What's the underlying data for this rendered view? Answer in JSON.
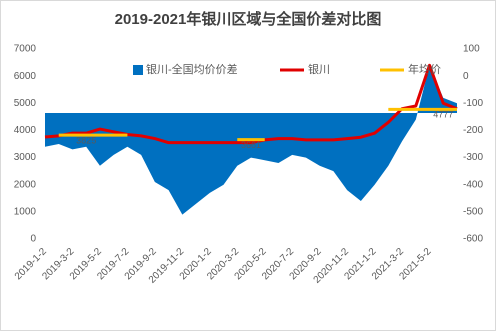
{
  "chart_data": {
    "type": "combo",
    "title": "2019-2021年银川区域与全国价差对比图",
    "categories": [
      "2019-1-2",
      null,
      "2019-3-2",
      null,
      "2019-5-2",
      null,
      "2019-7-2",
      null,
      "2019-9-2",
      null,
      "2019-11-2",
      null,
      "2020-1-2",
      null,
      "2020-3-2",
      null,
      "2020-5-2",
      null,
      "2020-7-2",
      null,
      "2020-9-2",
      null,
      "2020-11-2",
      null,
      "2021-1-2",
      null,
      "2021-3-2",
      null,
      "2021-5-2",
      null,
      null
    ],
    "series": [
      {
        "name": "银川-全国均价价差",
        "kind": "area",
        "axis": "y2",
        "color": "#0070c0",
        "values": [
          -260,
          -250,
          -270,
          -260,
          -330,
          -290,
          -260,
          -290,
          -390,
          -420,
          -510,
          -470,
          -430,
          -400,
          -330,
          -300,
          -310,
          -320,
          -290,
          -300,
          -330,
          -350,
          -420,
          -460,
          -400,
          -330,
          -240,
          -160,
          40,
          -80,
          -100
        ]
      },
      {
        "name": "银川",
        "kind": "line",
        "color": "#e00000",
        "values": [
          3760,
          3800,
          3900,
          3900,
          4050,
          3950,
          3850,
          3800,
          3700,
          3550,
          3550,
          3550,
          3550,
          3550,
          3550,
          3550,
          3650,
          3700,
          3700,
          3650,
          3650,
          3650,
          3700,
          3750,
          3900,
          4300,
          4800,
          4900,
          6400,
          5000,
          4800
        ]
      },
      {
        "name": "年均价",
        "kind": "line",
        "color": "#ffc000",
        "values": [
          null,
          3825,
          3825,
          3825,
          3825,
          3825,
          3825,
          null,
          null,
          null,
          null,
          null,
          null,
          null,
          3661,
          3661,
          3661,
          null,
          null,
          null,
          null,
          null,
          null,
          null,
          null,
          4777,
          4777,
          4777,
          4777,
          4777,
          4777
        ],
        "labelled": [
          3,
          15,
          29
        ]
      }
    ],
    "ylim": [
      0,
      7000
    ],
    "yticks": [
      0,
      1000,
      2000,
      3000,
      4000,
      5000,
      6000,
      7000
    ],
    "y2lim": [
      -600,
      100
    ],
    "y2ticks": [
      -600,
      -500,
      -400,
      -300,
      -200,
      -100,
      0,
      100
    ]
  }
}
